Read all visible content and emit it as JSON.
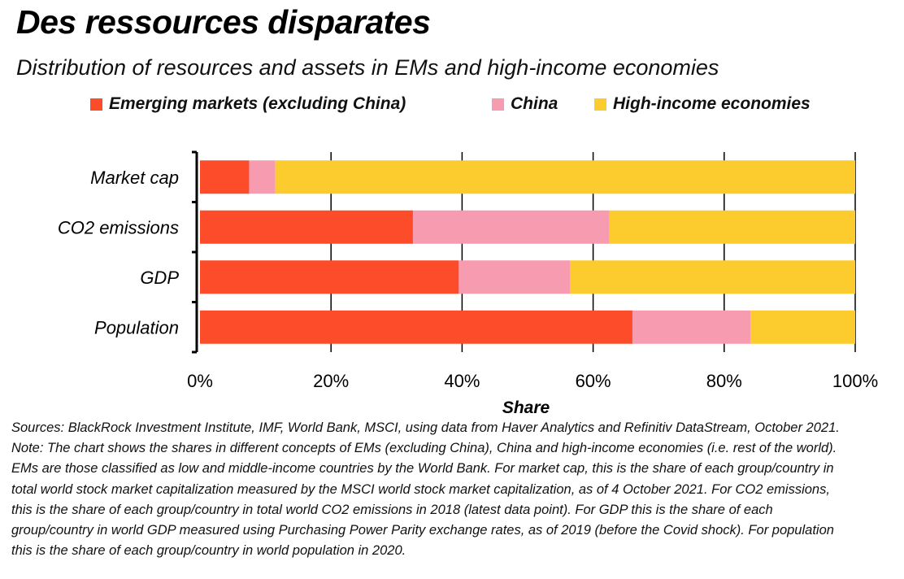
{
  "title": "Des ressources disparates",
  "subtitle": "Distribution of resources and assets in EMs and high-income economies",
  "chart_data": {
    "type": "bar",
    "orientation": "horizontal",
    "stacked": true,
    "categories": [
      "Market cap",
      "CO2 emissions",
      "GDP",
      "Population"
    ],
    "series": [
      {
        "name": "Emerging markets (excluding China)",
        "color": "#fc4c2a",
        "values": [
          7.5,
          32.5,
          39.5,
          66
        ]
      },
      {
        "name": "China",
        "color": "#f79bb1",
        "values": [
          4,
          30,
          17,
          18
        ]
      },
      {
        "name": "High-income economies",
        "color": "#fccc2e",
        "values": [
          88.5,
          37.5,
          43.5,
          16
        ]
      }
    ],
    "xlim": [
      0,
      100
    ],
    "xticks": [
      "0%",
      "20%",
      "40%",
      "60%",
      "80%",
      "100%"
    ],
    "xlabel": "Share",
    "ylabel": "",
    "grid": "vertical",
    "legend_position": "top"
  },
  "notes": [
    "Sources: BlackRock Investment Institute, IMF, World Bank, MSCI, using data from Haver Analytics and Refinitiv DataStream, October 2021.",
    "Note: The chart shows the shares in different concepts of EMs (excluding China), China and high-income economies (i.e. rest of the world).",
    "EMs are those classified as low and middle-income countries by the World Bank. For market cap, this is the share of each group/country in",
    "total world stock market capitalization measured by the MSCI world stock market capitalization, as of 4 October 2021. For CO2 emissions,",
    "this is the share of each group/country in total world CO2 emissions in 2018 (latest data point). For GDP this is the share of each",
    "group/country in world GDP measured using Purchasing Power Parity exchange rates, as of 2019 (before the Covid shock). For population",
    "this is the share of each group/country in world population in 2020."
  ]
}
